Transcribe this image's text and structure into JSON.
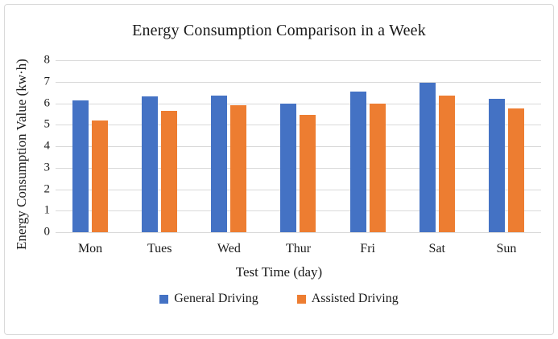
{
  "chart_data": {
    "type": "bar",
    "title": "Energy Consumption Comparison in a Week",
    "xlabel": "Test Time (day)",
    "ylabel": "Energy Consumption Value (kw·h)",
    "categories": [
      "Mon",
      "Tues",
      "Wed",
      "Thur",
      "Fri",
      "Sat",
      "Sun"
    ],
    "series": [
      {
        "name": "General Driving",
        "color": "#4472C4",
        "values": [
          6.15,
          6.3,
          6.35,
          6.0,
          6.55,
          6.95,
          6.2
        ]
      },
      {
        "name": "Assisted Driving",
        "color": "#ED7D31",
        "values": [
          5.2,
          5.65,
          5.9,
          5.45,
          6.0,
          6.35,
          5.75
        ]
      }
    ],
    "ylim": [
      0,
      8
    ],
    "ytick_step": 1,
    "yticks": [
      0,
      1,
      2,
      3,
      4,
      5,
      6,
      7,
      8
    ],
    "grid": "horizontal",
    "legend_position": "bottom",
    "gridline_color": "#d9d9d9",
    "border_color": "#d9d9d9",
    "text_color": "#1a1a1a"
  }
}
